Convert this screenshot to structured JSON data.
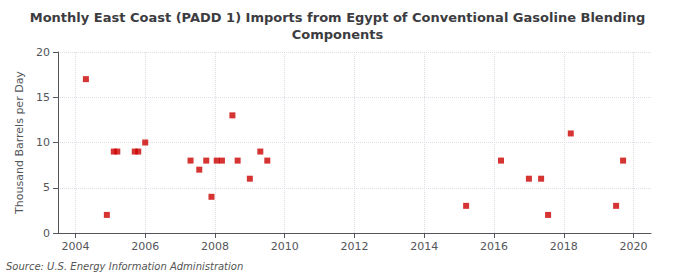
{
  "chart_data": {
    "type": "scatter",
    "title": "Monthly East Coast (PADD 1) Imports from Egypt of Conventional Gasoline Blending\nComponents",
    "ylabel": "Thousand Barrels per Day",
    "annotations": [
      "Source: U.S. Energy Information Administration"
    ],
    "color": "#cc0000",
    "marker": "square",
    "grid": true,
    "xlim": [
      2003.5,
      2020.5
    ],
    "ylim": [
      0,
      20
    ],
    "xticks": [
      2004,
      2006,
      2008,
      2010,
      2012,
      2014,
      2016,
      2018,
      2020
    ],
    "yticks": [
      0,
      5,
      10,
      15,
      20
    ],
    "x": [
      2004.3,
      2004.9,
      2005.1,
      2005.2,
      2005.7,
      2005.8,
      2006.0,
      2007.3,
      2007.55,
      2007.75,
      2007.9,
      2008.05,
      2008.2,
      2008.5,
      2008.65,
      2009.0,
      2009.3,
      2009.5,
      2015.2,
      2016.2,
      2017.0,
      2017.35,
      2017.55,
      2018.2,
      2019.5,
      2019.7
    ],
    "values": [
      17,
      2,
      9,
      9,
      9,
      9,
      10,
      8,
      7,
      8,
      4,
      8,
      8,
      13,
      8,
      6,
      9,
      8,
      3,
      8,
      6,
      6,
      2,
      11,
      3,
      8
    ]
  }
}
